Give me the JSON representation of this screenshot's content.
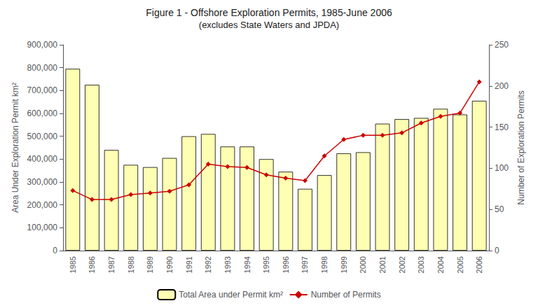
{
  "chart_data": {
    "type": "bar",
    "title": "Figure 1 - Offshore Exploration Permits, 1985-June 2006",
    "subtitle": "(excludes State Waters and JPDA)",
    "categories": [
      "1985",
      "1986",
      "1987",
      "1988",
      "1989",
      "1990",
      "1991",
      "1992",
      "1993",
      "1994",
      "1995",
      "1996",
      "1997",
      "1998",
      "1999",
      "2000",
      "2001",
      "2002",
      "2003",
      "2004",
      "2005",
      "2006"
    ],
    "series": [
      {
        "name": "Total Area under Permit km²",
        "type": "bar",
        "color": "#FFFFB3",
        "values": [
          795000,
          725000,
          440000,
          375000,
          365000,
          405000,
          500000,
          510000,
          455000,
          455000,
          400000,
          345000,
          270000,
          330000,
          425000,
          430000,
          555000,
          575000,
          580000,
          620000,
          595000,
          655000
        ]
      },
      {
        "name": "Number of Permits",
        "type": "line",
        "color": "#CC0000",
        "marker": "diamond",
        "axis": "y2",
        "values": [
          73,
          62,
          62,
          68,
          70,
          72,
          80,
          105,
          102,
          101,
          92,
          88,
          85,
          115,
          135,
          140,
          140,
          143,
          155,
          163,
          167,
          205
        ]
      }
    ],
    "ylabel": "Area Under Exploration Permit km²",
    "y2label": "Number of Exploration Permits",
    "ylim": [
      0,
      900000
    ],
    "yticks": [
      0,
      {
        "value": 100000,
        "label": "100,000"
      },
      {
        "value": 200000,
        "label": "200,000"
      },
      {
        "value": 300000,
        "label": "300,000"
      },
      {
        "value": 400000,
        "label": "400,000"
      },
      {
        "value": 500000,
        "label": "500,000"
      },
      {
        "value": 600000,
        "label": "600,000"
      },
      {
        "value": 700000,
        "label": "700,000"
      },
      {
        "value": 800000,
        "label": "800,000"
      },
      {
        "value": 900000,
        "label": "900,000"
      }
    ],
    "y2lim": [
      0,
      250
    ],
    "y2ticks": [
      0,
      50,
      100,
      150,
      200,
      250
    ],
    "grid": false,
    "legend": "bottom"
  }
}
